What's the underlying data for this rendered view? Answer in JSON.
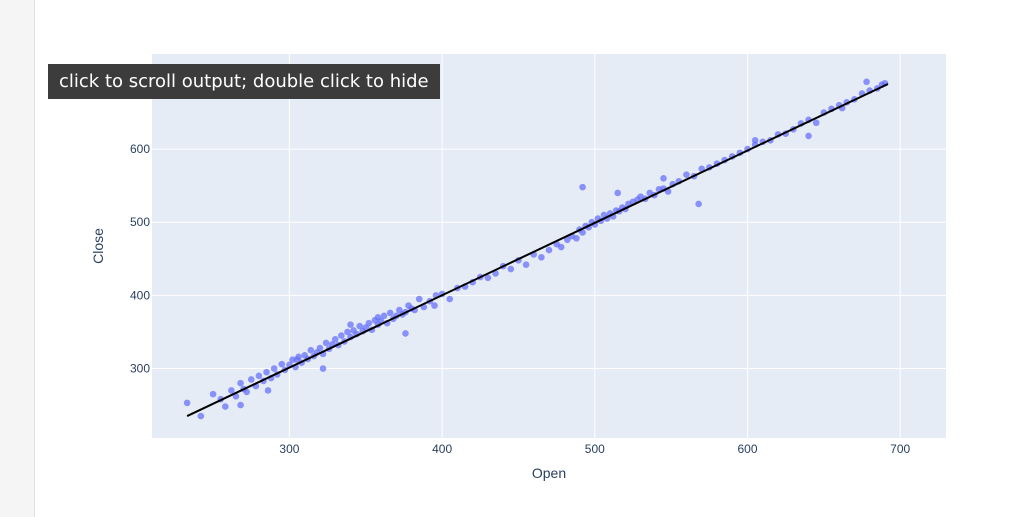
{
  "notebook": {
    "tooltip_text": "click to scroll output; double click to hide"
  },
  "colors": {
    "plot_bg": "#e5ecf6",
    "grid": "#ffffff",
    "marker": "#636efa",
    "trendline": "#000000",
    "axis_text": "#2a3f5f"
  },
  "chart_data": {
    "type": "scatter",
    "title": "",
    "xlabel": "Open",
    "ylabel": "Close",
    "xlim": [
      210,
      730
    ],
    "ylim": [
      205,
      730
    ],
    "xticks": [
      300,
      400,
      500,
      600,
      700
    ],
    "yticks": [
      300,
      400,
      500,
      600
    ],
    "xtick_labels": [
      "300",
      "400",
      "500",
      "600",
      "700"
    ],
    "ytick_labels": [
      "300",
      "400",
      "500",
      "600"
    ],
    "grid": true,
    "legend": "none",
    "series": [
      {
        "type": "scatter",
        "x": [
          233,
          242,
          250,
          255,
          258,
          262,
          265,
          268,
          270,
          272,
          275,
          278,
          280,
          283,
          285,
          288,
          290,
          292,
          295,
          297,
          300,
          302,
          304,
          306,
          308,
          310,
          312,
          314,
          316,
          318,
          320,
          322,
          324,
          326,
          328,
          330,
          332,
          334,
          336,
          338,
          340,
          342,
          344,
          346,
          348,
          350,
          352,
          354,
          356,
          358,
          360,
          362,
          364,
          366,
          368,
          370,
          372,
          374,
          376,
          378,
          380,
          382,
          385,
          388,
          392,
          396,
          400,
          405,
          410,
          415,
          420,
          425,
          430,
          435,
          440,
          445,
          450,
          455,
          460,
          465,
          470,
          475,
          478,
          482,
          485,
          488,
          490,
          492,
          494,
          496,
          498,
          500,
          502,
          504,
          506,
          508,
          510,
          512,
          514,
          516,
          518,
          520,
          522,
          525,
          528,
          530,
          533,
          536,
          539,
          542,
          545,
          548,
          551,
          555,
          560,
          565,
          570,
          575,
          580,
          585,
          590,
          595,
          600,
          605,
          610,
          615,
          620,
          625,
          630,
          635,
          640,
          645,
          650,
          655,
          660,
          665,
          670,
          675,
          680,
          685,
          690,
          268,
          286,
          305,
          322,
          340,
          358,
          376,
          395,
          492,
          515,
          545,
          568,
          605,
          640,
          662,
          678,
          688
        ],
        "y": [
          253,
          235,
          265,
          258,
          248,
          270,
          262,
          280,
          272,
          268,
          285,
          276,
          290,
          283,
          295,
          287,
          300,
          292,
          306,
          298,
          305,
          312,
          302,
          316,
          308,
          318,
          313,
          325,
          317,
          322,
          328,
          320,
          335,
          327,
          333,
          340,
          332,
          345,
          337,
          350,
          343,
          352,
          347,
          358,
          351,
          356,
          362,
          353,
          366,
          360,
          365,
          372,
          362,
          376,
          368,
          372,
          380,
          374,
          377,
          386,
          382,
          380,
          395,
          384,
          392,
          400,
          402,
          395,
          410,
          412,
          418,
          425,
          424,
          430,
          440,
          436,
          448,
          442,
          456,
          452,
          462,
          470,
          466,
          476,
          481,
          478,
          490,
          486,
          495,
          493,
          500,
          497,
          505,
          502,
          510,
          505,
          512,
          508,
          516,
          515,
          520,
          518,
          525,
          528,
          531,
          535,
          532,
          540,
          537,
          545,
          546,
          542,
          552,
          556,
          565,
          563,
          573,
          575,
          580,
          585,
          590,
          595,
          600,
          606,
          610,
          612,
          620,
          621,
          627,
          635,
          640,
          636,
          650,
          655,
          660,
          664,
          668,
          676,
          680,
          683,
          690,
          250,
          270,
          312,
          300,
          360,
          370,
          348,
          386,
          548,
          540,
          560,
          525,
          612,
          618,
          656,
          692,
          688
        ]
      },
      {
        "type": "line",
        "x": [
          233,
          692
        ],
        "y": [
          235,
          689
        ]
      }
    ]
  }
}
